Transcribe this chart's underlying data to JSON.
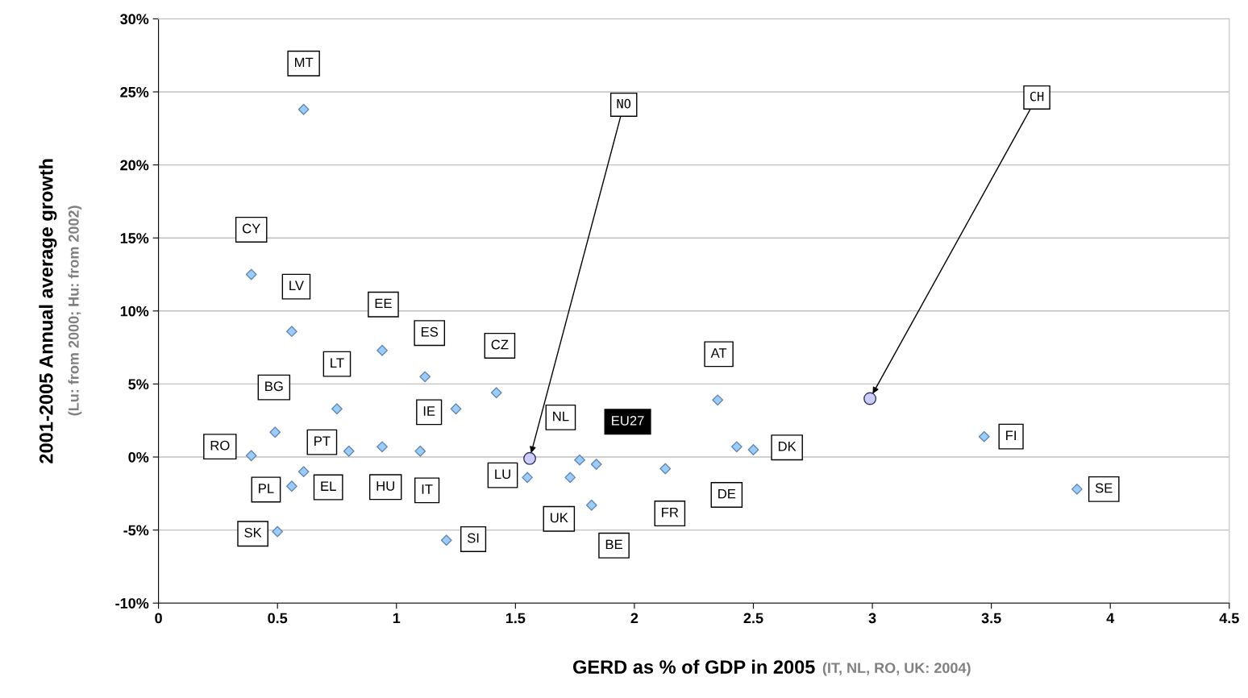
{
  "chart_data": {
    "type": "scatter",
    "xlabel": "GERD as % of GDP in 2005",
    "ylabel": "2001-2005 Annual average growth",
    "annotations": [
      "(Lu: from 2000; Hu: from 2002)",
      "(IT, NL, RO, UK: 2004)"
    ],
    "xlim": [
      0,
      4.5
    ],
    "xticks": [
      0,
      0.5,
      1,
      1.5,
      2,
      2.5,
      3,
      3.5,
      4,
      4.5
    ],
    "ylim": [
      -10,
      30
    ],
    "yticks": [
      {
        "value": -10,
        "label": "-10%"
      },
      {
        "value": -5,
        "label": "-5%"
      },
      {
        "value": 0,
        "label": "0%"
      },
      {
        "value": 5,
        "label": "5%"
      },
      {
        "value": 10,
        "label": "10%"
      },
      {
        "value": 15,
        "label": "15%"
      },
      {
        "value": 20,
        "label": "20%"
      },
      {
        "value": 25,
        "label": "25%"
      },
      {
        "value": 30,
        "label": "30%"
      }
    ],
    "grid": "y",
    "legend": false,
    "series": [
      {
        "color": "#99ccff",
        "marker": "diamond",
        "x": [
          0.61,
          0.39,
          0.56,
          0.94,
          1.12,
          1.25,
          1.42,
          0.75,
          0.49,
          0.39,
          0.8,
          0.94,
          1.1,
          0.61,
          0.56,
          0.5,
          1.21,
          1.55,
          1.77,
          1.73,
          1.82,
          2.13,
          2.35,
          2.43,
          2.5,
          3.47,
          3.86
        ],
        "values": [
          23.8,
          12.5,
          8.6,
          7.3,
          5.5,
          3.3,
          4.4,
          3.3,
          1.7,
          0.1,
          0.4,
          0.7,
          0.4,
          -1.0,
          -2.0,
          -5.1,
          -5.7,
          -1.4,
          -0.2,
          -1.4,
          -3.3,
          -0.8,
          3.9,
          0.7,
          0.5,
          1.4,
          -2.2
        ],
        "value_labels": [
          "MT",
          "CY",
          "LV",
          "EE",
          "ES",
          "IE",
          "CZ",
          "LT",
          "BG",
          "RO",
          "PT",
          "HU",
          "IT",
          "EL",
          "PL",
          "SK",
          "SI",
          "LU",
          "NL",
          "UK",
          "BE",
          "FR",
          "AT",
          "DE",
          "DK",
          "FI",
          "SE"
        ]
      },
      {
        "color": "#99ccff",
        "marker": "diamond",
        "x": [
          1.84
        ],
        "values": [
          -0.5
        ],
        "value_labels": [
          "EU27"
        ]
      },
      {
        "color": "#ccccff",
        "marker": "circle",
        "x": [
          1.56,
          2.99
        ],
        "values": [
          -0.1,
          4.0
        ],
        "value_labels": [
          "NO",
          "CH"
        ]
      }
    ]
  }
}
